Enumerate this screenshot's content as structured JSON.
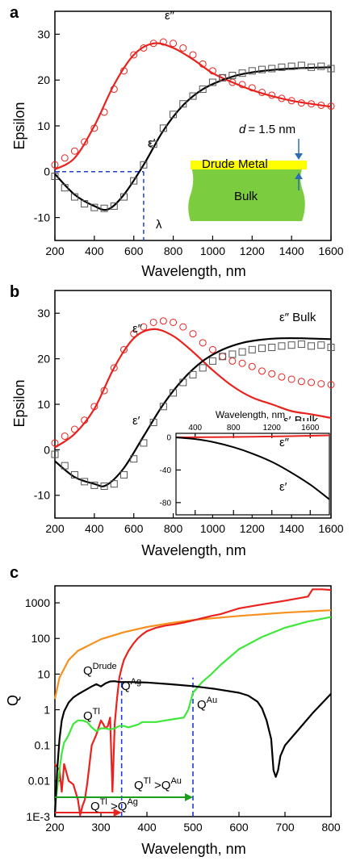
{
  "chart_data": [
    {
      "panel": "a",
      "type": "line",
      "xlabel": "Wavelength, nm",
      "ylabel": "Epsilon",
      "xlim": [
        200,
        1600
      ],
      "ylim": [
        -15,
        35
      ],
      "x_ticks": [
        200,
        400,
        600,
        800,
        1000,
        1200,
        1400,
        1600
      ],
      "y_ticks": [
        -10,
        0,
        10,
        20,
        30
      ],
      "series": [
        {
          "name": "ε″",
          "kind": "fit-line",
          "color": "#e8231f",
          "x": [
            200,
            300,
            400,
            500,
            600,
            700,
            800,
            900,
            1000,
            1100,
            1200,
            1300,
            1400,
            1500,
            1600
          ],
          "y": [
            0.5,
            3,
            10,
            19,
            25.5,
            28,
            27,
            24.5,
            21.5,
            19.5,
            17.8,
            16.5,
            15.5,
            14.8,
            14.2
          ]
        },
        {
          "name": "ε′",
          "kind": "fit-line",
          "color": "#000000",
          "x": [
            200,
            300,
            400,
            470,
            550,
            650,
            750,
            850,
            950,
            1050,
            1150,
            1300,
            1450,
            1600
          ],
          "y": [
            -0.5,
            -5,
            -7.5,
            -8.2,
            -5,
            1.5,
            9,
            14.5,
            18,
            20,
            21.3,
            22.2,
            22.6,
            22.8
          ]
        },
        {
          "name": "ε″ data",
          "kind": "circle-markers",
          "color": "#e8231f",
          "x": [
            200,
            250,
            300,
            350,
            400,
            450,
            500,
            550,
            600,
            650,
            700,
            750,
            800,
            850,
            900,
            950,
            1000,
            1050,
            1100,
            1150,
            1200,
            1250,
            1300,
            1350,
            1400,
            1450,
            1500,
            1550,
            1600
          ],
          "y": [
            1.5,
            3,
            4.5,
            6.5,
            9.5,
            13,
            18,
            22,
            25.5,
            27,
            28,
            28.3,
            28,
            27,
            25.5,
            23.5,
            22,
            20.5,
            19.5,
            19,
            18.3,
            17.3,
            16.7,
            16,
            15.5,
            15,
            14.8,
            14.5,
            14.3
          ]
        },
        {
          "name": "ε′ data",
          "kind": "square-markers",
          "color": "#000000",
          "x": [
            200,
            250,
            300,
            350,
            400,
            450,
            500,
            550,
            600,
            650,
            700,
            750,
            800,
            850,
            900,
            950,
            1000,
            1050,
            1100,
            1150,
            1200,
            1250,
            1300,
            1350,
            1400,
            1450,
            1500,
            1550,
            1600
          ],
          "y": [
            -1,
            -3.5,
            -5.5,
            -7,
            -7.8,
            -8,
            -7.5,
            -5.5,
            -2,
            1.5,
            6,
            9.5,
            12.5,
            14.8,
            16.5,
            18,
            19.5,
            20.5,
            21,
            21.5,
            22,
            22.3,
            22.5,
            22.8,
            23,
            23.2,
            22.8,
            23,
            22.5
          ]
        }
      ],
      "lambda_marker": {
        "x": 650,
        "y": 0,
        "label": "λ"
      },
      "labels": {
        "eps2": "ε″",
        "eps1": "ε′",
        "lambda": "λ"
      },
      "inset_diagram": {
        "top_label": "Drude Metal",
        "body_label": "Bulk",
        "thickness_var": "d",
        "thickness_value": "= 1.5 nm",
        "top_color": "#ffff00",
        "body_color": "#7ccc3f",
        "arrow_color": "#2e6db4"
      }
    },
    {
      "panel": "b",
      "type": "line",
      "xlabel": "Wavelength, nm",
      "ylabel": "Epsilon",
      "xlim": [
        200,
        1600
      ],
      "ylim": [
        -15,
        35
      ],
      "x_ticks": [
        200,
        400,
        600,
        800,
        1000,
        1200,
        1400,
        1600
      ],
      "y_ticks": [
        -10,
        0,
        10,
        20,
        30
      ],
      "series": [
        {
          "name": "ε″",
          "kind": "line",
          "color": "#e8231f",
          "x": [
            200,
            300,
            400,
            500,
            600,
            700,
            800,
            900,
            1000,
            1100,
            1200,
            1300,
            1400,
            1500,
            1600
          ],
          "y": [
            0.5,
            3.5,
            9,
            18,
            24.5,
            26.5,
            25,
            21.5,
            17.5,
            14,
            11.5,
            10,
            8.5,
            7.8,
            7
          ]
        },
        {
          "name": "ε″ Bulk",
          "kind": "line",
          "color": "#000000",
          "x": [
            200,
            300,
            400,
            460,
            550,
            650,
            750,
            850,
            950,
            1050,
            1150,
            1250,
            1350,
            1450,
            1600
          ],
          "y": [
            -2.5,
            -6,
            -7.5,
            -7.8,
            -4,
            3,
            10,
            15.5,
            19.5,
            22,
            23.5,
            24.2,
            24.5,
            24.5,
            24.3
          ]
        },
        {
          "name": "ε″ data",
          "kind": "circle-markers",
          "color": "#e8231f",
          "x": [
            200,
            250,
            300,
            350,
            400,
            450,
            500,
            550,
            600,
            650,
            700,
            750,
            800,
            850,
            900,
            950,
            1000,
            1050,
            1100,
            1150,
            1200,
            1250,
            1300,
            1350,
            1400,
            1450,
            1500,
            1550,
            1600
          ],
          "y": [
            1.5,
            3,
            4.5,
            6.5,
            9.5,
            13,
            18,
            22,
            25.5,
            27,
            28,
            28.3,
            28,
            27,
            25.5,
            23.5,
            22,
            20.5,
            19.5,
            19,
            18.3,
            17.3,
            16.7,
            16,
            15.5,
            15,
            14.8,
            14.5,
            14.3
          ]
        },
        {
          "name": "ε′ data",
          "kind": "square-markers",
          "color": "#000000",
          "x": [
            200,
            250,
            300,
            350,
            400,
            450,
            500,
            550,
            600,
            650,
            700,
            750,
            800,
            850,
            900,
            950,
            1000,
            1050,
            1100,
            1150,
            1200,
            1250,
            1300,
            1350,
            1400,
            1450,
            1500,
            1550,
            1600
          ],
          "y": [
            -1,
            -3.5,
            -5.5,
            -7,
            -7.8,
            -8,
            -7.5,
            -5.5,
            -2,
            1.5,
            6,
            9.5,
            12.5,
            14.8,
            16.5,
            18,
            19.5,
            20.5,
            21,
            21.5,
            22,
            22.3,
            22.5,
            22.8,
            23,
            23.2,
            22.8,
            23,
            22.5
          ]
        }
      ],
      "labels": {
        "eps2": "ε″",
        "eps1": "ε′",
        "eps2_bulk": "ε″ Bulk",
        "eps1_bulk": "ε′ Bulk"
      },
      "inset": {
        "xlabel": "Wavelength, nm",
        "xlim": [
          200,
          1800
        ],
        "ylim": [
          -95,
          5
        ],
        "x_ticks": [
          400,
          800,
          1200,
          1600
        ],
        "y_ticks": [
          0,
          -40,
          -80
        ],
        "series": [
          {
            "name": "ε″",
            "color": "#e8231f",
            "x": [
              200,
              600,
              1000,
              1400,
              1800
            ],
            "y": [
              0,
              0.3,
              0.8,
              1.5,
              2.5
            ]
          },
          {
            "name": "ε′",
            "color": "#000000",
            "x": [
              200,
              400,
              600,
              800,
              1000,
              1200,
              1400,
              1600,
              1800
            ],
            "y": [
              0,
              -2,
              -6,
              -12,
              -20,
              -30,
              -43,
              -58,
              -76
            ]
          }
        ],
        "labels": {
          "eps2": "ε″",
          "eps1": "ε′"
        }
      }
    },
    {
      "panel": "c",
      "type": "line",
      "xlabel": "Wavelength, nm",
      "ylabel": "Q",
      "yscale": "log",
      "xlim": [
        200,
        800
      ],
      "ylim": [
        0.001,
        3000
      ],
      "x_ticks": [
        200,
        300,
        400,
        500,
        600,
        700,
        800
      ],
      "y_ticks": [
        0.001,
        0.01,
        0.1,
        1,
        10,
        100,
        1000
      ],
      "y_tick_labels": [
        "1E-3",
        "0.01",
        "0.1",
        "1",
        "10",
        "100",
        "1000"
      ],
      "series": [
        {
          "name": "Q^Drude",
          "color": "#f7901e",
          "x": [
            200,
            210,
            230,
            250,
            300,
            350,
            400,
            450,
            500,
            600,
            700,
            800
          ],
          "y": [
            2,
            8,
            25,
            45,
            95,
            150,
            210,
            270,
            330,
            430,
            530,
            620
          ]
        },
        {
          "name": "Q^Ag",
          "color": "#e8231f",
          "x": [
            200,
            210,
            215,
            220,
            230,
            240,
            250,
            255,
            260,
            265,
            270,
            280,
            290,
            300,
            305,
            310,
            315,
            320,
            325,
            330,
            335,
            340,
            345,
            350,
            360,
            370,
            380,
            390,
            400,
            420,
            440,
            460,
            480,
            500,
            520,
            540,
            560,
            580,
            600,
            650,
            700,
            750,
            760,
            780,
            800
          ],
          "y": [
            0.03,
            0.02,
            0.005,
            0.03,
            0.01,
            0.008,
            0.003,
            0.0011,
            0.002,
            0.003,
            0.008,
            0.1,
            0.2,
            0.5,
            0.4,
            0.3,
            0.35,
            0.6,
            0.005,
            0.4,
            2,
            8,
            15,
            25,
            45,
            70,
            100,
            130,
            160,
            200,
            230,
            250,
            280,
            320,
            370,
            430,
            480,
            580,
            700,
            900,
            1150,
            1500,
            2400,
            2400,
            2300
          ]
        },
        {
          "name": "Q^Au",
          "color": "#3ee83a",
          "x": [
            200,
            205,
            210,
            215,
            220,
            225,
            230,
            240,
            250,
            260,
            270,
            280,
            290,
            300,
            310,
            320,
            330,
            340,
            350,
            360,
            370,
            380,
            390,
            400,
            420,
            440,
            460,
            480,
            490,
            500,
            520,
            540,
            560,
            580,
            600,
            650,
            700,
            750,
            800
          ],
          "y": [
            0.002,
            0.006,
            0.02,
            0.06,
            0.12,
            0.15,
            0.2,
            0.4,
            0.5,
            0.5,
            0.45,
            0.32,
            0.25,
            0.3,
            0.3,
            0.28,
            0.3,
            0.35,
            0.35,
            0.32,
            0.35,
            0.38,
            0.45,
            0.45,
            0.45,
            0.5,
            0.55,
            0.6,
            1,
            3,
            6,
            10,
            18,
            30,
            50,
            110,
            200,
            300,
            400
          ]
        },
        {
          "name": "Q^Tl",
          "color": "#000000",
          "x": [
            200,
            205,
            210,
            215,
            220,
            230,
            240,
            250,
            260,
            270,
            280,
            290,
            300,
            310,
            320,
            330,
            340,
            350,
            360,
            380,
            400,
            450,
            500,
            550,
            600,
            620,
            640,
            650,
            660,
            670,
            675,
            680,
            685,
            690,
            700,
            720,
            740,
            760,
            780,
            800
          ],
          "y": [
            0.001,
            0.02,
            0.15,
            0.5,
            0.9,
            1.6,
            2.2,
            2.7,
            3.2,
            3.8,
            4.5,
            5.2,
            4.5,
            5.5,
            6.2,
            6.3,
            6,
            6,
            6,
            5.9,
            5.8,
            5.2,
            4.6,
            3.8,
            3,
            2.5,
            1.7,
            1.1,
            0.5,
            0.15,
            0.02,
            0.013,
            0.02,
            0.05,
            0.1,
            0.2,
            0.4,
            0.8,
            1.5,
            2.8
          ]
        }
      ],
      "vlines": [
        {
          "x": 345,
          "color": "#1f3ddc"
        },
        {
          "x": 500,
          "color": "#1f3ddc"
        }
      ],
      "arrows": [
        {
          "from": 200,
          "to": 500,
          "y": 0.0035,
          "color": "#1e9e1e",
          "label_base": "Q",
          "label_sup": "Tl",
          "label_mid": " >Q",
          "label_sup2": "Au"
        },
        {
          "from": 200,
          "to": 345,
          "y": 0.0013,
          "color": "#e8231f",
          "label_base": "Q",
          "label_sup": "Tl",
          "label_mid": " >Q",
          "label_sup2": "Ag"
        }
      ],
      "labels": {
        "drude": {
          "base": "Q",
          "sup": "Drude"
        },
        "ag": {
          "base": "Q",
          "sup": "Ag"
        },
        "tl": {
          "base": "Q",
          "sup": "Tl"
        },
        "au": {
          "base": "Q",
          "sup": "Au"
        }
      }
    }
  ],
  "panel_labels": [
    "a",
    "b",
    "c"
  ]
}
